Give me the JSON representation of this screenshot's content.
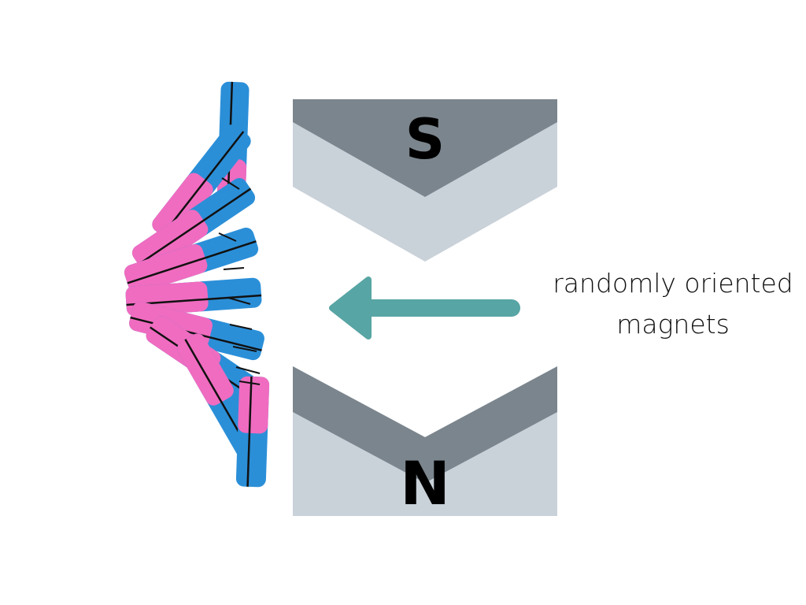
{
  "poles": {
    "top_label": "S",
    "bottom_label": "N"
  },
  "caption": {
    "line1": "randomly oriented",
    "line2": "magnets"
  },
  "colors": {
    "pole_dark": "#7b858d",
    "pole_light": "#c9d1d9",
    "pole_text": "#000000",
    "arrow": "#57a5a4",
    "magnet_blue": "#2b8fd8",
    "magnet_pink": "#f06cc0",
    "magnet_outline": "#111111"
  },
  "icons": {
    "arrow": "left-arrow-icon"
  }
}
